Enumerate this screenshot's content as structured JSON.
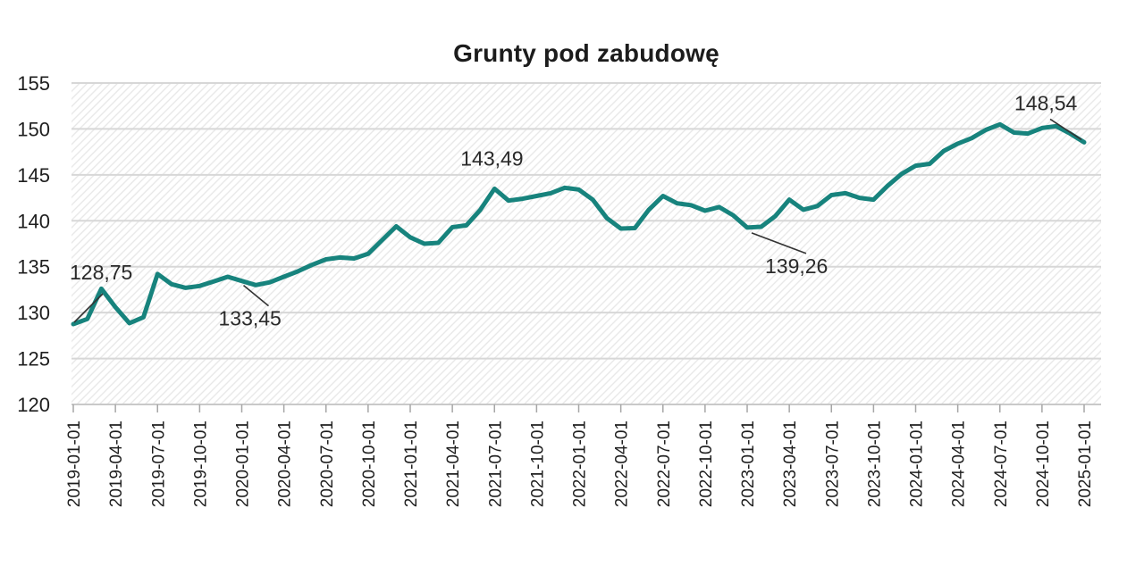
{
  "title": "Grunty pod zabudowę",
  "chart_data": {
    "type": "line",
    "title": "Grunty pod zabudowę",
    "series_name": "Grunty pod zabudowę",
    "frequency": "monthly",
    "x_start": "2019-01-01",
    "x_end": "2025-01-01",
    "values": [
      128.75,
      129.3,
      132.6,
      130.6,
      128.85,
      129.5,
      134.2,
      133.1,
      132.7,
      132.9,
      133.4,
      133.9,
      133.45,
      133.0,
      133.3,
      133.9,
      134.5,
      135.2,
      135.8,
      136.0,
      135.9,
      136.4,
      137.9,
      139.4,
      138.2,
      137.5,
      137.6,
      139.3,
      139.5,
      141.2,
      143.49,
      142.2,
      142.4,
      142.7,
      143.0,
      143.6,
      143.4,
      142.3,
      140.3,
      139.15,
      139.2,
      141.2,
      142.7,
      141.9,
      141.7,
      141.1,
      141.5,
      140.6,
      139.26,
      139.35,
      140.5,
      142.3,
      141.2,
      141.6,
      142.8,
      143.0,
      142.5,
      142.3,
      143.8,
      145.1,
      146.0,
      146.2,
      147.6,
      148.4,
      149.0,
      149.9,
      150.5,
      149.6,
      149.5,
      150.1,
      150.3,
      149.5,
      148.54
    ],
    "x_tick_labels": [
      "2019-01-01",
      "2019-04-01",
      "2019-07-01",
      "2019-10-01",
      "2020-01-01",
      "2020-04-01",
      "2020-07-01",
      "2020-10-01",
      "2021-01-01",
      "2021-04-01",
      "2021-07-01",
      "2021-10-01",
      "2022-01-01",
      "2022-04-01",
      "2022-07-01",
      "2022-10-01",
      "2023-01-01",
      "2023-04-01",
      "2023-07-01",
      "2023-10-01",
      "2024-01-01",
      "2024-04-01",
      "2024-07-01",
      "2024-10-01",
      "2025-01-01"
    ],
    "x_ticks_every_n_points": 3,
    "y_ticks": [
      120,
      125,
      130,
      135,
      140,
      145,
      150,
      155
    ],
    "ylim": [
      120,
      155
    ],
    "grid": "horizontal",
    "plot_background": "diagonal-hatch",
    "annotations": [
      {
        "label": "128,75",
        "point_index": 0,
        "value": 128.75,
        "text_dx": -4,
        "text_dy": -50,
        "leader": [
          1,
          -2,
          33,
          -34
        ]
      },
      {
        "label": "133,45",
        "point_index": 12,
        "value": 133.45,
        "text_dx": -26,
        "text_dy": 50,
        "leader": [
          2,
          5,
          30,
          28
        ]
      },
      {
        "label": "143,49",
        "point_index": 30,
        "value": 143.49,
        "text_dx": -38,
        "text_dy": -26,
        "leader": null
      },
      {
        "label": "139,26",
        "point_index": 48,
        "value": 139.26,
        "text_dx": 20,
        "text_dy": 51,
        "leader": [
          5,
          6,
          66,
          29
        ]
      },
      {
        "label": "148,54",
        "point_index": 72,
        "value": 148.54,
        "text_dx": -78,
        "text_dy": -36,
        "leader": [
          -38,
          -26,
          -3,
          -3
        ]
      }
    ],
    "colors": {
      "line": "#17837d",
      "gridline": "#d7d7d7",
      "hatch": "#e7e7e7",
      "axis_line": "#c9c9c9",
      "tick": "#a6a6a6",
      "text": "#1f1f1f",
      "annotation_text": "#2a2a2a",
      "background": "#ffffff"
    }
  }
}
